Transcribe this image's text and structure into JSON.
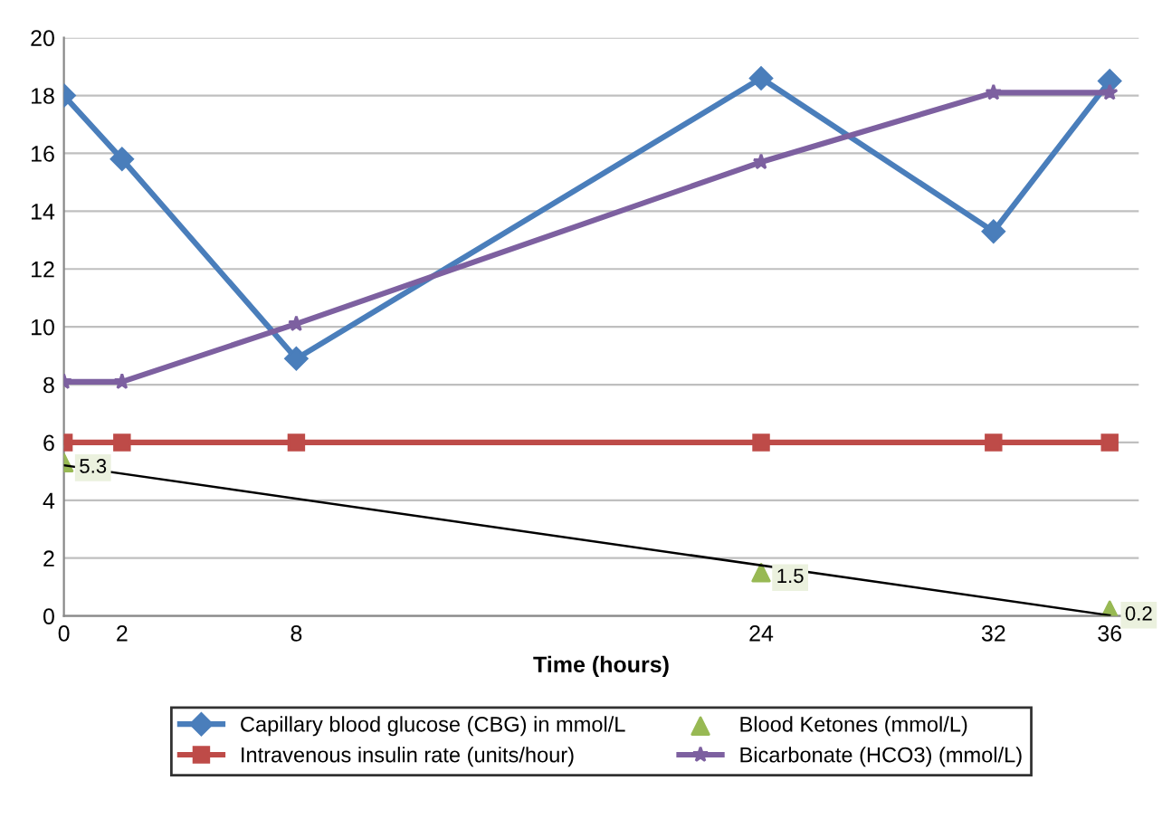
{
  "chart_data": {
    "type": "line",
    "xlabel": "Time (hours)",
    "xlim": [
      0,
      37
    ],
    "xticks": [
      0,
      2,
      8,
      24,
      32,
      36
    ],
    "ylim": [
      0,
      20
    ],
    "yticks": [
      0,
      2,
      4,
      6,
      8,
      10,
      12,
      14,
      16,
      18,
      20
    ],
    "grid": "y",
    "legend": "bottom",
    "series": [
      {
        "name": "Capillary blood glucose (CBG) in mmol/L",
        "color": "#4a7ebb",
        "marker": "diamond",
        "x": [
          0,
          2,
          8,
          24,
          32,
          36
        ],
        "values": [
          18,
          15.8,
          8.9,
          18.6,
          13.3,
          18.5
        ]
      },
      {
        "name": "Intravenous insulin rate (units/hour)",
        "color": "#be4b48",
        "marker": "square",
        "x": [
          0,
          2,
          8,
          24,
          32,
          36
        ],
        "values": [
          6,
          6,
          6,
          6,
          6,
          6
        ]
      },
      {
        "name": "Blood Ketones (mmol/L)",
        "color": "#98b954",
        "marker": "triangle",
        "type": "scatter",
        "x": [
          0,
          24,
          36
        ],
        "values": [
          5.3,
          1.5,
          0.2
        ],
        "value_labels": [
          "5.3",
          "1.5",
          "0.2"
        ]
      },
      {
        "name": "Bicarbonate (HCO3) (mmol/L)",
        "color": "#7d60a0",
        "marker": "star",
        "x": [
          0,
          2,
          8,
          24,
          32,
          36
        ],
        "values": [
          8.1,
          8.1,
          10.1,
          15.7,
          18.1,
          18.1
        ]
      },
      {
        "type": "line",
        "color": "#000000",
        "marker": "none",
        "x": [
          0,
          36
        ],
        "values": [
          5.21,
          0.02
        ]
      }
    ]
  }
}
